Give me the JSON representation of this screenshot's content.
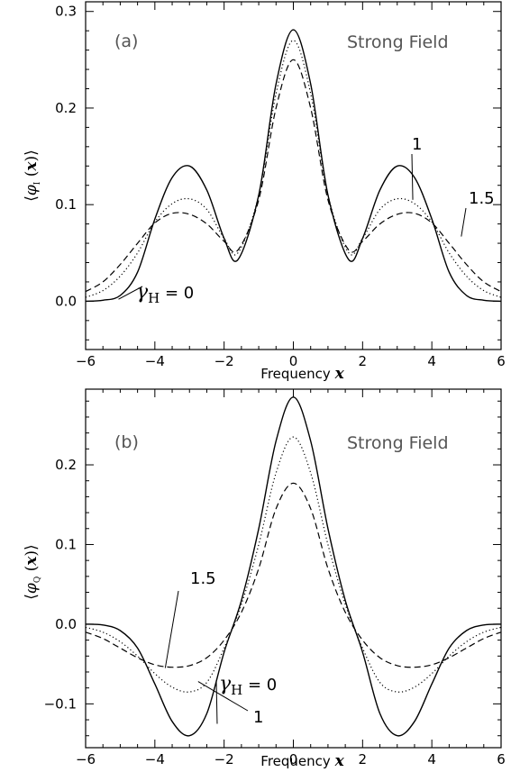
{
  "chart_data": [
    {
      "type": "line",
      "panel_label": "(a)",
      "title": "Strong Field",
      "xlabel": "Frequency",
      "xlabel_var": "x",
      "ylabel_open": "⟨",
      "ylabel_phi": "φ",
      "ylabel_sub": "I",
      "ylabel_arg": " (",
      "ylabel_x": "x",
      "ylabel_close": ")⟩",
      "xlim": [
        -6,
        6
      ],
      "ylim": [
        -0.05,
        0.31
      ],
      "xticks": [
        -6,
        -4,
        -2,
        0,
        2,
        4,
        6
      ],
      "xtick_labels": [
        "−6",
        "−4",
        "−2",
        "0",
        "2",
        "4",
        "6"
      ],
      "yticks": [
        0.0,
        0.1,
        0.2,
        0.3
      ],
      "ytick_labels": [
        "0.0",
        "0.1",
        "0.2",
        "0.3"
      ],
      "series": [
        {
          "gamma": "0",
          "style": "solid",
          "x": [
            -6,
            -5.5,
            -5,
            -4.5,
            -4,
            -3.5,
            -3,
            -2.5,
            -2,
            -1.6,
            -1,
            -0.5,
            0,
            0.5,
            1,
            1.6,
            2,
            2.5,
            3,
            3.5,
            4,
            4.5,
            5,
            5.5,
            6
          ],
          "y": [
            0.0,
            0.001,
            0.006,
            0.03,
            0.085,
            0.128,
            0.14,
            0.115,
            0.065,
            0.043,
            0.11,
            0.225,
            0.281,
            0.225,
            0.11,
            0.043,
            0.065,
            0.115,
            0.14,
            0.128,
            0.085,
            0.03,
            0.006,
            0.001,
            0.0
          ]
        },
        {
          "gamma": "1",
          "style": "dotted",
          "x": [
            -6,
            -5.5,
            -5,
            -4.5,
            -4,
            -3.5,
            -3,
            -2.5,
            -2,
            -1.6,
            -1,
            -0.5,
            0,
            0.5,
            1,
            1.6,
            2,
            2.5,
            3,
            3.5,
            4,
            4.5,
            5,
            5.5,
            6
          ],
          "y": [
            0.004,
            0.011,
            0.026,
            0.05,
            0.082,
            0.101,
            0.106,
            0.095,
            0.065,
            0.05,
            0.11,
            0.215,
            0.27,
            0.215,
            0.11,
            0.05,
            0.065,
            0.095,
            0.106,
            0.101,
            0.082,
            0.05,
            0.026,
            0.011,
            0.004
          ]
        },
        {
          "gamma": "1.5",
          "style": "dashed",
          "x": [
            -6,
            -5.5,
            -5,
            -4.5,
            -4,
            -3.5,
            -3,
            -2.5,
            -2,
            -1.6,
            -1,
            -0.5,
            0,
            0.5,
            1,
            1.6,
            2,
            2.5,
            3,
            3.5,
            4,
            4.5,
            5,
            5.5,
            6
          ],
          "y": [
            0.01,
            0.02,
            0.038,
            0.06,
            0.081,
            0.091,
            0.09,
            0.08,
            0.062,
            0.053,
            0.105,
            0.2,
            0.25,
            0.2,
            0.105,
            0.053,
            0.062,
            0.08,
            0.09,
            0.091,
            0.081,
            0.06,
            0.038,
            0.02,
            0.01
          ]
        }
      ],
      "annotations": [
        {
          "text": "1",
          "pointer": [
            3.45,
            0.105
          ]
        },
        {
          "text": "1.5",
          "pointer": [
            4.85,
            0.067
          ]
        },
        {
          "text": "γ",
          "sub": "H",
          "tail": " = 0",
          "pointer": [
            -5.05,
            0.002
          ]
        }
      ]
    },
    {
      "type": "line",
      "panel_label": "(b)",
      "title": "Strong Field",
      "xlabel": "Frequency",
      "xlabel_var": "x",
      "ylabel_open": "⟨",
      "ylabel_phi": "φ",
      "ylabel_sub": "Q",
      "ylabel_arg": " (",
      "ylabel_x": "x",
      "ylabel_close": ")⟩",
      "xlim": [
        -6,
        6
      ],
      "ylim": [
        -0.155,
        0.295
      ],
      "xticks": [
        -6,
        -4,
        -2,
        0,
        2,
        4,
        6
      ],
      "xtick_labels": [
        "−6",
        "−4",
        "−2",
        "0",
        "2",
        "4",
        "6"
      ],
      "yticks": [
        -0.1,
        0.0,
        0.1,
        0.2
      ],
      "ytick_labels": [
        "−0.1",
        "0.0",
        "0.1",
        "0.2"
      ],
      "series": [
        {
          "gamma": "0",
          "style": "solid",
          "x": [
            -6,
            -5.5,
            -5,
            -4.5,
            -4,
            -3.5,
            -3,
            -2.5,
            -2,
            -1.5,
            -1,
            -0.5,
            0,
            0.5,
            1,
            1.5,
            2,
            2.5,
            3,
            3.5,
            4,
            4.5,
            5,
            5.5,
            6
          ],
          "y": [
            0.0,
            -0.001,
            -0.008,
            -0.03,
            -0.075,
            -0.122,
            -0.14,
            -0.112,
            -0.035,
            0.03,
            0.12,
            0.23,
            0.285,
            0.23,
            0.12,
            0.03,
            -0.035,
            -0.112,
            -0.14,
            -0.122,
            -0.075,
            -0.03,
            -0.008,
            -0.001,
            0.0
          ]
        },
        {
          "gamma": "1",
          "style": "dotted",
          "x": [
            -6,
            -5.5,
            -5,
            -4.5,
            -4,
            -3.5,
            -3,
            -2.5,
            -2,
            -1.5,
            -1,
            -0.5,
            0,
            0.5,
            1,
            1.5,
            2,
            2.5,
            3,
            3.5,
            4,
            4.5,
            5,
            5.5,
            6
          ],
          "y": [
            -0.004,
            -0.01,
            -0.022,
            -0.04,
            -0.062,
            -0.079,
            -0.085,
            -0.073,
            -0.03,
            0.025,
            0.1,
            0.19,
            0.235,
            0.19,
            0.1,
            0.025,
            -0.03,
            -0.073,
            -0.085,
            -0.079,
            -0.062,
            -0.04,
            -0.022,
            -0.01,
            -0.004
          ]
        },
        {
          "gamma": "1.5",
          "style": "dashed",
          "x": [
            -6,
            -5.5,
            -5,
            -4.5,
            -4,
            -3.5,
            -3,
            -2.5,
            -2,
            -1.5,
            -1,
            -0.5,
            0,
            0.5,
            1,
            1.5,
            2,
            2.5,
            3,
            3.5,
            4,
            4.5,
            5,
            5.5,
            6
          ],
          "y": [
            -0.01,
            -0.018,
            -0.03,
            -0.042,
            -0.051,
            -0.054,
            -0.052,
            -0.042,
            -0.02,
            0.015,
            0.07,
            0.145,
            0.177,
            0.145,
            0.07,
            0.015,
            -0.02,
            -0.042,
            -0.052,
            -0.054,
            -0.051,
            -0.042,
            -0.03,
            -0.018,
            -0.01
          ]
        }
      ],
      "annotations": [
        {
          "text": "1.5",
          "pointer": [
            -3.7,
            -0.055
          ]
        },
        {
          "text": "1",
          "pointer": [
            -2.75,
            -0.072
          ]
        },
        {
          "text": "γ",
          "sub": "H",
          "tail": " = 0",
          "pointer": [
            -2.2,
            -0.125
          ]
        }
      ]
    }
  ]
}
